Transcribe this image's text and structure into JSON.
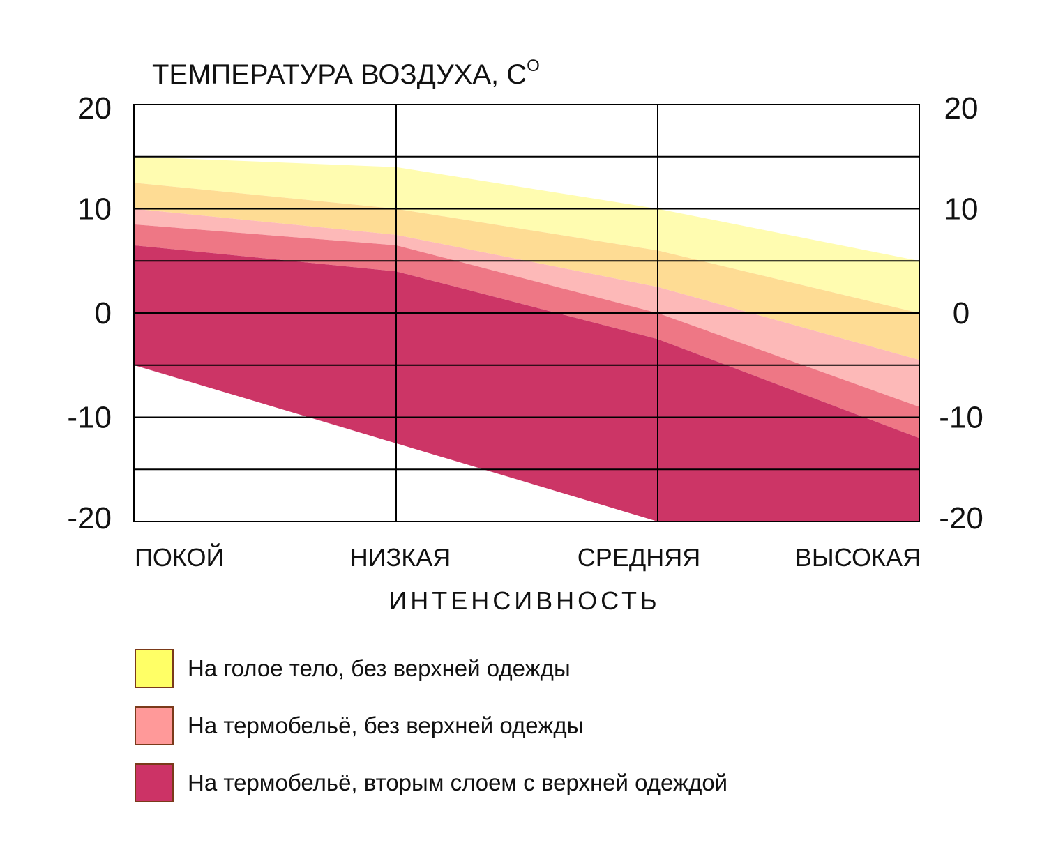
{
  "chart_data": {
    "type": "area",
    "title": "ТЕМПЕРАТУРА ВОЗДУХА, С",
    "title_superscript": "O",
    "xlabel": "ИНТЕНСИВНОСТЬ",
    "categories": [
      "ПОКОЙ",
      "НИЗКАЯ",
      "СРЕДНЯЯ",
      "ВЫСОКАЯ"
    ],
    "ylim": [
      -20,
      20
    ],
    "y_ticks": [
      20,
      10,
      0,
      -10,
      -20
    ],
    "y_ticks_right": [
      20,
      10,
      0,
      -10,
      -20
    ],
    "grid": true,
    "legend_position": "bottom-left",
    "series": [
      {
        "name": "На голое тело, без верхней одежды",
        "color": "#ffff66",
        "bands": [
          {
            "color": "#fffcb0",
            "upper": [
              15,
              14,
              10,
              5
            ],
            "lower": [
              12.5,
              10,
              6,
              0
            ]
          },
          {
            "color": "#fedc94",
            "upper": [
              12.5,
              10,
              6,
              0
            ],
            "lower": [
              10,
              7.5,
              2.5,
              -4.5
            ]
          }
        ]
      },
      {
        "name": "На термобельё, без верхней одежды",
        "color": "#ff9999",
        "bands": [
          {
            "color": "#fdb9b8",
            "upper": [
              10,
              7.5,
              2.5,
              -4.5
            ],
            "lower": [
              8.5,
              6.5,
              0,
              -9
            ]
          },
          {
            "color": "#ee7785",
            "upper": [
              8.5,
              6.5,
              0,
              -9
            ],
            "lower": [
              6.5,
              4,
              -2.5,
              -12
            ]
          }
        ]
      },
      {
        "name": "На термобельё, вторым слоем с верхней одеждой",
        "color": "#cc3366",
        "bands": [
          {
            "color": "#cc3566",
            "upper": [
              6.5,
              4,
              -2.5,
              -12
            ],
            "lower": [
              -5,
              -12.5,
              -20,
              -20
            ]
          }
        ]
      }
    ]
  }
}
